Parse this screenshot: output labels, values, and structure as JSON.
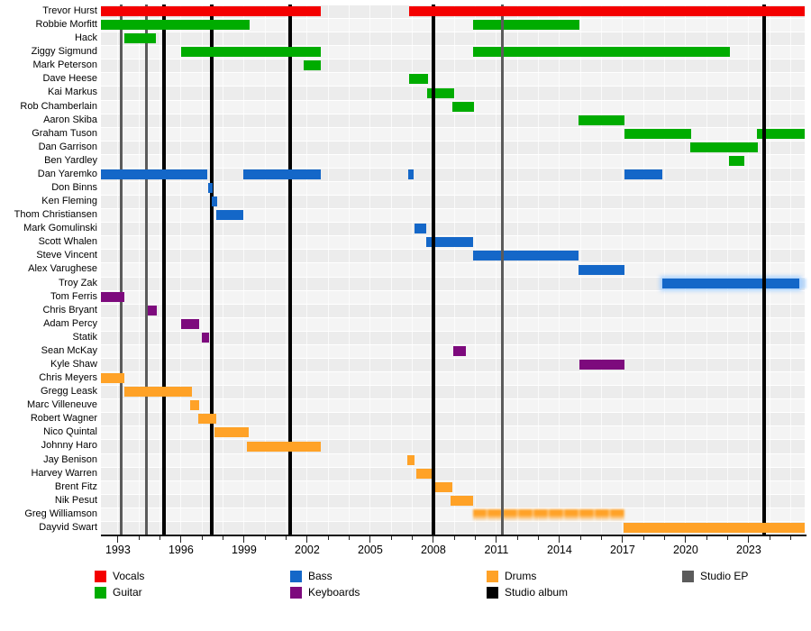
{
  "chart_data": {
    "type": "gantt",
    "description": "Band line-up timeline: member tenures by instrument with studio album and EP release markers",
    "axis": {
      "start_year": 1992.19,
      "end_year": 2025.66,
      "tick_every_years": 1,
      "labeled_years": [
        1993,
        1996,
        1999,
        2002,
        2005,
        2008,
        2011,
        2014,
        2017,
        2020,
        2023
      ],
      "labels": [
        "1993",
        "1996",
        "1999",
        "2002",
        "2005",
        "2008",
        "2011",
        "2014",
        "2017",
        "2020",
        "2023"
      ]
    },
    "roles": {
      "Vocals": "#F40000",
      "Guitar": "#00AC00",
      "Bass": "#1467C8",
      "Keyboards": "#7D0A7D",
      "Drums": "#FFA227"
    },
    "event_colors": {
      "album": "#000000",
      "ep": "#5B5B5B"
    },
    "members": [
      {
        "name": "Trevor Hurst",
        "role": "Vocals",
        "segments": [
          {
            "start": 1992.2,
            "end": 2002.65,
            "overline": true
          },
          {
            "start": 2006.85,
            "end": 2025.66,
            "overline": true
          }
        ]
      },
      {
        "name": "Robbie Morfitt",
        "role": "Guitar",
        "segments": [
          {
            "start": 1992.2,
            "end": 1999.25
          },
          {
            "start": 2009.9,
            "end": 2014.95
          }
        ]
      },
      {
        "name": "Hack",
        "role": "Guitar",
        "segments": [
          {
            "start": 1993.3,
            "end": 1994.8
          }
        ]
      },
      {
        "name": "Ziggy Sigmund",
        "role": "Guitar",
        "segments": [
          {
            "start": 1996.0,
            "end": 2002.65
          },
          {
            "start": 2009.9,
            "end": 2022.1
          }
        ]
      },
      {
        "name": "Mark Peterson",
        "role": "Guitar",
        "segments": [
          {
            "start": 2001.85,
            "end": 2002.65
          }
        ]
      },
      {
        "name": "Dave Heese",
        "role": "Guitar",
        "segments": [
          {
            "start": 2006.85,
            "end": 2007.75
          }
        ]
      },
      {
        "name": "Kai Markus",
        "role": "Guitar",
        "segments": [
          {
            "start": 2007.7,
            "end": 2009.0
          }
        ]
      },
      {
        "name": "Rob Chamberlain",
        "role": "Guitar",
        "segments": [
          {
            "start": 2008.9,
            "end": 2009.95
          }
        ]
      },
      {
        "name": "Aaron Skiba",
        "role": "Guitar",
        "segments": [
          {
            "start": 2014.9,
            "end": 2017.1
          }
        ]
      },
      {
        "name": "Graham Tuson",
        "role": "Guitar",
        "segments": [
          {
            "start": 2017.1,
            "end": 2020.25
          },
          {
            "start": 2023.4,
            "end": 2025.66
          }
        ]
      },
      {
        "name": "Dan Garrison",
        "role": "Guitar",
        "segments": [
          {
            "start": 2020.2,
            "end": 2023.45
          }
        ]
      },
      {
        "name": "Ben Yardley",
        "role": "Guitar",
        "segments": [
          {
            "start": 2022.05,
            "end": 2022.8
          }
        ]
      },
      {
        "name": "Dan Yaremko",
        "role": "Bass",
        "segments": [
          {
            "start": 1992.2,
            "end": 1997.25
          },
          {
            "start": 1998.95,
            "end": 2002.65
          },
          {
            "start": 2006.8,
            "end": 2007.08
          },
          {
            "start": 2017.1,
            "end": 2018.9
          }
        ]
      },
      {
        "name": "Don Binns",
        "role": "Bass",
        "segments": [
          {
            "start": 1997.27,
            "end": 1997.52
          }
        ]
      },
      {
        "name": "Ken Fleming",
        "role": "Bass",
        "segments": [
          {
            "start": 1997.45,
            "end": 1997.7
          }
        ]
      },
      {
        "name": "Thom Christiansen",
        "role": "Bass",
        "segments": [
          {
            "start": 1997.67,
            "end": 1998.95
          }
        ]
      },
      {
        "name": "Mark Gomulinski",
        "role": "Bass",
        "segments": [
          {
            "start": 2007.1,
            "end": 2007.65
          }
        ]
      },
      {
        "name": "Scott Whalen",
        "role": "Bass",
        "segments": [
          {
            "start": 2007.65,
            "end": 2009.9
          }
        ]
      },
      {
        "name": "Steve Vincent",
        "role": "Bass",
        "segments": [
          {
            "start": 2009.9,
            "end": 2014.9
          }
        ]
      },
      {
        "name": "Alex Varughese",
        "role": "Bass",
        "segments": [
          {
            "start": 2014.9,
            "end": 2017.1
          }
        ]
      },
      {
        "name": "Troy Zak",
        "role": "Bass",
        "segments": [
          {
            "start": 2018.9,
            "end": 2025.4,
            "glow": true
          }
        ]
      },
      {
        "name": "Tom Ferris",
        "role": "Keyboards",
        "segments": [
          {
            "start": 1992.2,
            "end": 1993.3
          }
        ]
      },
      {
        "name": "Chris Bryant",
        "role": "Keyboards",
        "segments": [
          {
            "start": 1994.4,
            "end": 1994.85
          }
        ]
      },
      {
        "name": "Adam Percy",
        "role": "Keyboards",
        "segments": [
          {
            "start": 1996.0,
            "end": 1996.85
          }
        ]
      },
      {
        "name": "Statik",
        "role": "Keyboards",
        "segments": [
          {
            "start": 1997.0,
            "end": 1997.35
          }
        ]
      },
      {
        "name": "Sean McKay",
        "role": "Keyboards",
        "segments": [
          {
            "start": 2008.95,
            "end": 2009.55
          }
        ]
      },
      {
        "name": "Kyle Shaw",
        "role": "Keyboards",
        "segments": [
          {
            "start": 2014.95,
            "end": 2017.1
          }
        ]
      },
      {
        "name": "Chris Meyers",
        "role": "Drums",
        "segments": [
          {
            "start": 1992.2,
            "end": 1993.3
          }
        ]
      },
      {
        "name": "Gregg Leask",
        "role": "Drums",
        "segments": [
          {
            "start": 1993.3,
            "end": 1996.5
          }
        ]
      },
      {
        "name": "Marc Villeneuve",
        "role": "Drums",
        "segments": [
          {
            "start": 1996.45,
            "end": 1996.85
          }
        ]
      },
      {
        "name": "Robert Wagner",
        "role": "Drums",
        "segments": [
          {
            "start": 1996.8,
            "end": 1997.67
          }
        ]
      },
      {
        "name": "Nico Quintal",
        "role": "Drums",
        "segments": [
          {
            "start": 1997.6,
            "end": 1999.2
          }
        ]
      },
      {
        "name": "Johnny Haro",
        "role": "Drums",
        "segments": [
          {
            "start": 1999.15,
            "end": 2002.65
          }
        ]
      },
      {
        "name": "Jay Benison",
        "role": "Drums",
        "segments": [
          {
            "start": 2006.75,
            "end": 2007.1
          }
        ]
      },
      {
        "name": "Harvey Warren",
        "role": "Drums",
        "segments": [
          {
            "start": 2007.2,
            "end": 2008.0
          }
        ]
      },
      {
        "name": "Brent Fitz",
        "role": "Drums",
        "segments": [
          {
            "start": 2007.9,
            "end": 2008.9
          }
        ]
      },
      {
        "name": "Nik Pesut",
        "role": "Drums",
        "segments": [
          {
            "start": 2008.8,
            "end": 2009.9
          }
        ]
      },
      {
        "name": "Greg Williamson",
        "role": "Drums",
        "segments": [
          {
            "start": 2009.9,
            "end": 2017.1,
            "fuzzy": true
          }
        ]
      },
      {
        "name": "Dayvid Swart",
        "role": "Drums",
        "segments": [
          {
            "start": 2017.05,
            "end": 2025.66,
            "overline": true
          }
        ]
      }
    ],
    "events": [
      {
        "kind": "ep",
        "year": 1993.15,
        "front": false
      },
      {
        "kind": "ep",
        "year": 1994.35,
        "front": false
      },
      {
        "kind": "album",
        "year": 1995.2,
        "front": false
      },
      {
        "kind": "album",
        "year": 1997.45,
        "front": false
      },
      {
        "kind": "album",
        "year": 2001.2,
        "front": false
      },
      {
        "kind": "album",
        "year": 2008.0,
        "front": true
      },
      {
        "kind": "ep",
        "year": 2011.3,
        "front": true
      },
      {
        "kind": "album",
        "year": 2023.75,
        "front": true
      }
    ],
    "legend": {
      "columns": [
        [
          {
            "label": "Vocals",
            "color": "#F40000"
          },
          {
            "label": "Guitar",
            "color": "#00AC00"
          }
        ],
        [
          {
            "label": "Bass",
            "color": "#1467C8"
          },
          {
            "label": "Keyboards",
            "color": "#7D0A7D"
          }
        ],
        [
          {
            "label": "Drums",
            "color": "#FFA227"
          },
          {
            "label": "Studio album",
            "color": "#000000"
          }
        ],
        [
          {
            "label": "Studio EP",
            "color": "#5B5B5B"
          }
        ]
      ]
    }
  }
}
